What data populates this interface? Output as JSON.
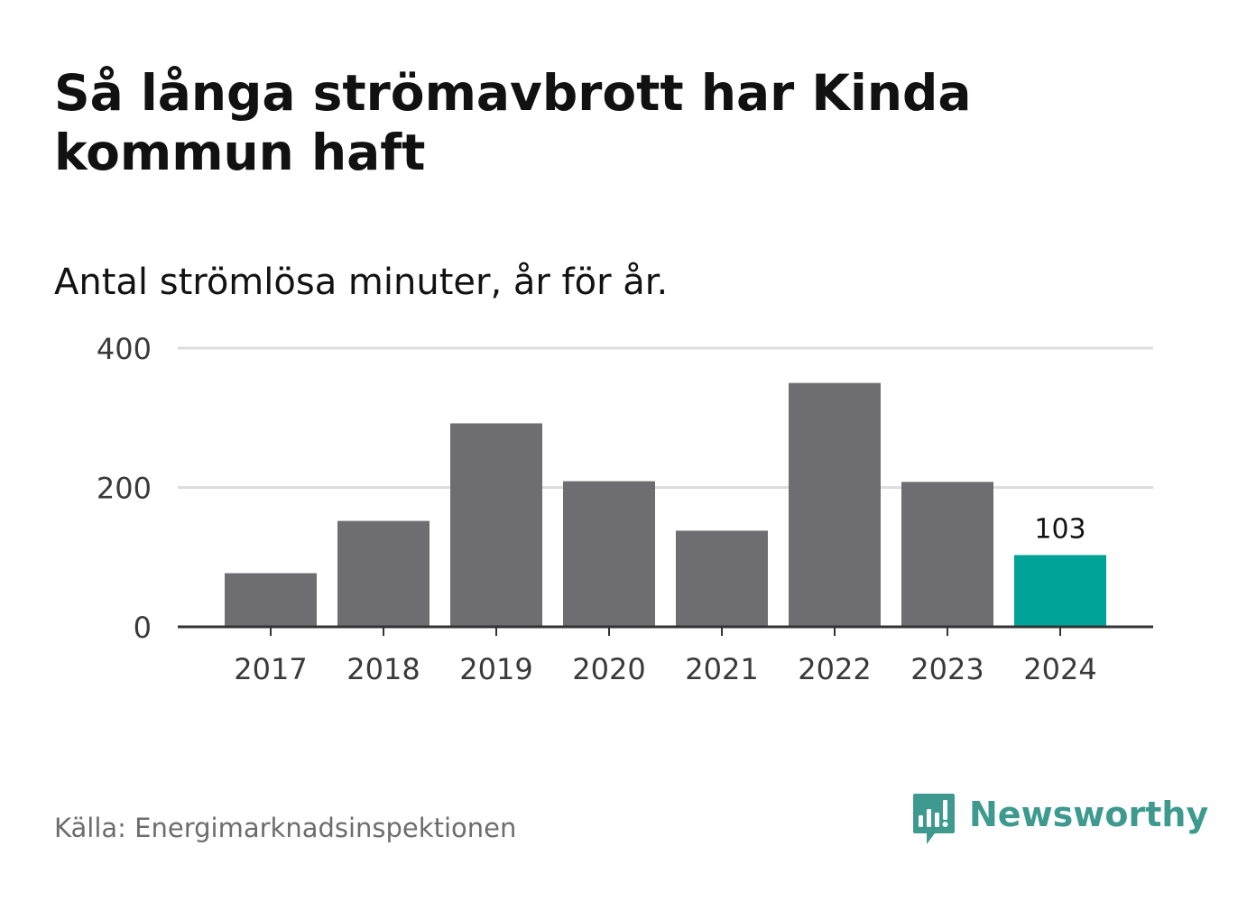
{
  "title": "Så långa strömavbrott har Kinda kommun haft",
  "subtitle": "Antal strömlösa minuter, år för år.",
  "source": "Källa: Energimarknadsinspektionen",
  "brand": {
    "name": "Newsworthy",
    "icon": "newsworthy-logo-icon",
    "color": "#3e9a8f"
  },
  "colors": {
    "bar": "#6e6d72",
    "highlight": "#00a398",
    "grid": "#dddddd",
    "axis": "#333333",
    "tick_text": "#3a3a3a"
  },
  "chart_data": {
    "type": "bar",
    "title": "Så långa strömavbrott har Kinda kommun haft",
    "subtitle": "Antal strömlösa minuter, år för år.",
    "xlabel": "",
    "ylabel": "",
    "categories": [
      "2017",
      "2018",
      "2019",
      "2020",
      "2021",
      "2022",
      "2023",
      "2024"
    ],
    "values": [
      77,
      152,
      292,
      209,
      138,
      350,
      208,
      103
    ],
    "highlight_index": 7,
    "data_labels": [
      {
        "index": 7,
        "text": "103"
      }
    ],
    "ylim": [
      0,
      400
    ],
    "yticks": [
      0,
      200,
      400
    ],
    "grid": true
  }
}
